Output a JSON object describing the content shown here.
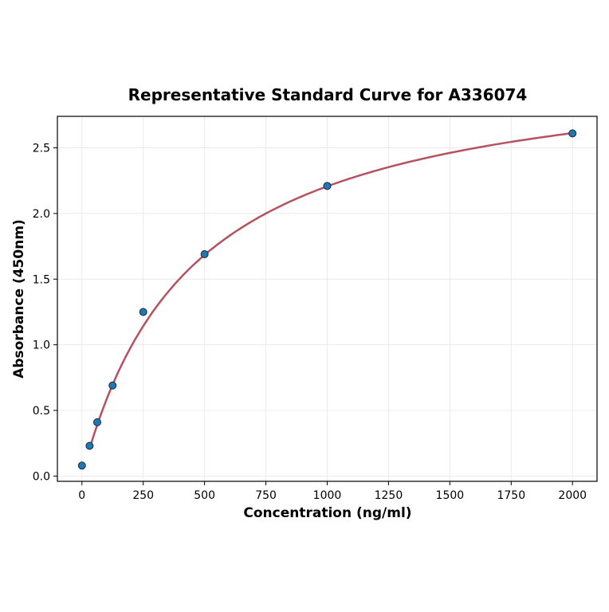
{
  "chart_data": {
    "type": "scatter",
    "title": "Representative Standard Curve for A336074",
    "xlabel": "Concentration (ng/ml)",
    "ylabel": "Absorbance (450nm)",
    "xlim": [
      -100,
      2100
    ],
    "ylim": [
      -0.04,
      2.74
    ],
    "xticks": [
      0,
      250,
      500,
      750,
      1000,
      1250,
      1500,
      1750,
      2000
    ],
    "yticks": [
      0.0,
      0.5,
      1.0,
      1.5,
      2.0,
      2.5
    ],
    "xtick_labels": [
      "0",
      "250",
      "500",
      "750",
      "1000",
      "1250",
      "1500",
      "1750",
      "2000"
    ],
    "ytick_labels": [
      "0.0",
      "0.5",
      "1.0",
      "1.5",
      "2.0",
      "2.5"
    ],
    "grid": true,
    "series": [
      {
        "type": "scatter",
        "x": [
          0,
          31.25,
          62.5,
          125,
          250,
          500,
          1000,
          2000
        ],
        "y": [
          0.08,
          0.23,
          0.41,
          0.69,
          1.25,
          1.69,
          2.21,
          2.61
        ],
        "color": "#1f77b4"
      },
      {
        "type": "line",
        "fit": true,
        "x_range": [
          31.25,
          2000
        ],
        "color": "#b5525f"
      }
    ]
  }
}
